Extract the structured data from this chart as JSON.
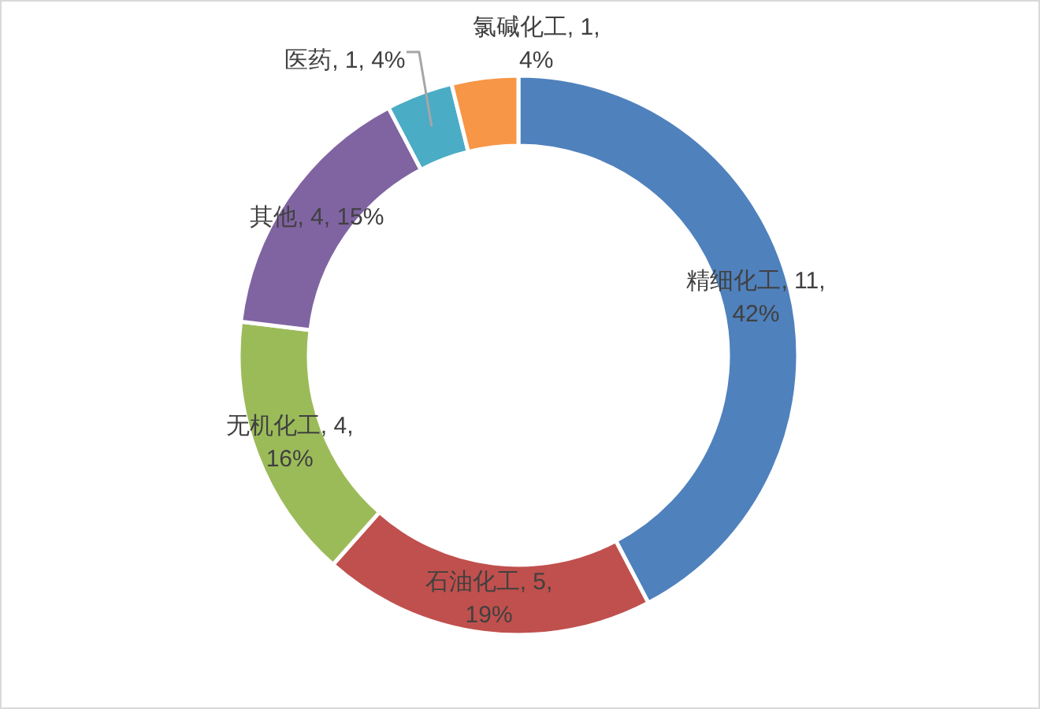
{
  "chart_data": {
    "type": "donut",
    "categories": [
      "精细化工",
      "石油化工",
      "无机化工",
      "其他",
      "医药",
      "氯碱化工"
    ],
    "values": [
      11,
      5,
      4,
      4,
      1,
      1
    ],
    "colors": [
      "#4f81bd",
      "#c0504d",
      "#9bbb59",
      "#8064a2",
      "#4bacc6",
      "#f79646"
    ],
    "value_labels": [
      "11, 42%",
      "5, 19%",
      "4, 16%",
      "4, 15%",
      "1, 4%",
      "1, 4%"
    ]
  }
}
